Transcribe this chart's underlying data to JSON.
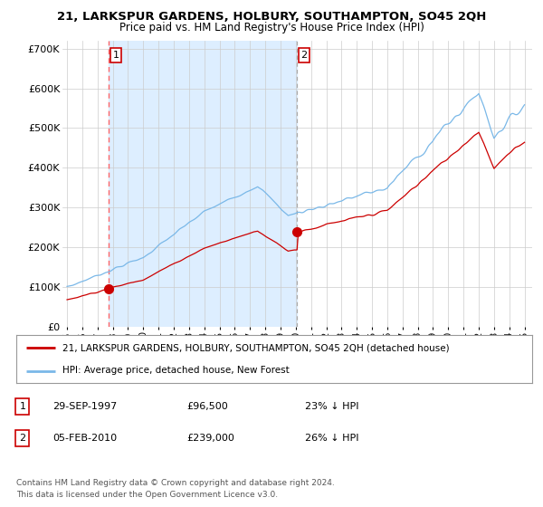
{
  "title": "21, LARKSPUR GARDENS, HOLBURY, SOUTHAMPTON, SO45 2QH",
  "subtitle": "Price paid vs. HM Land Registry's House Price Index (HPI)",
  "ylabel_ticks": [
    "£0",
    "£100K",
    "£200K",
    "£300K",
    "£400K",
    "£500K",
    "£600K",
    "£700K"
  ],
  "ytick_vals": [
    0,
    100000,
    200000,
    300000,
    400000,
    500000,
    600000,
    700000
  ],
  "ylim": [
    0,
    720000
  ],
  "sale1_x": 1997.75,
  "sale1_price": 96500,
  "sale2_x": 2010.09,
  "sale2_price": 239000,
  "legend_house": "21, LARKSPUR GARDENS, HOLBURY, SOUTHAMPTON, SO45 2QH (detached house)",
  "legend_hpi": "HPI: Average price, detached house, New Forest",
  "table_rows": [
    [
      "1",
      "29-SEP-1997",
      "£96,500",
      "23% ↓ HPI"
    ],
    [
      "2",
      "05-FEB-2010",
      "£239,000",
      "26% ↓ HPI"
    ]
  ],
  "footnote1": "Contains HM Land Registry data © Crown copyright and database right 2024.",
  "footnote2": "This data is licensed under the Open Government Licence v3.0.",
  "hpi_color": "#7ab8e8",
  "price_color": "#cc0000",
  "vline1_color": "#ff6666",
  "vline2_color": "#aaaaaa",
  "shade_color": "#ddeeff",
  "background_color": "#ffffff",
  "grid_color": "#cccccc",
  "xlim_left": 1994.7,
  "xlim_right": 2025.5
}
